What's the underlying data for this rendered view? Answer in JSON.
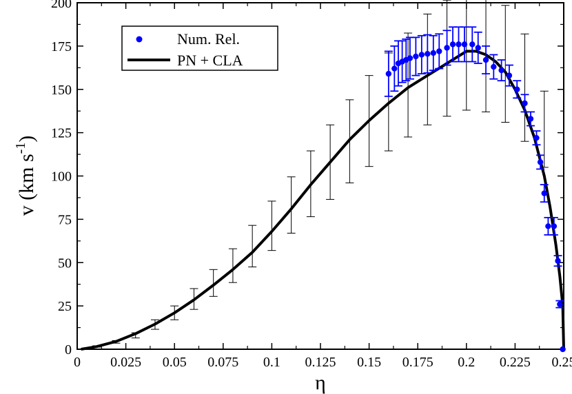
{
  "chart_data": {
    "type": "line",
    "title": "",
    "xlabel": "η",
    "ylabel": {
      "main": "v (km s",
      "exponent": "-1",
      "close": ")"
    },
    "xlim": [
      0,
      0.25
    ],
    "ylim": [
      0,
      200
    ],
    "x_ticks": [
      {
        "value": 0,
        "label": "0"
      },
      {
        "value": 0.025,
        "label": "0.025"
      },
      {
        "value": 0.05,
        "label": "0.05"
      },
      {
        "value": 0.075,
        "label": "0.075"
      },
      {
        "value": 0.1,
        "label": "0.1"
      },
      {
        "value": 0.125,
        "label": "0.125"
      },
      {
        "value": 0.15,
        "label": "0.15"
      },
      {
        "value": 0.175,
        "label": "0.175"
      },
      {
        "value": 0.2,
        "label": "0.2"
      },
      {
        "value": 0.225,
        "label": "0.225"
      },
      {
        "value": 0.25,
        "label": "0.25"
      }
    ],
    "y_ticks": [
      {
        "value": 0,
        "label": "0"
      },
      {
        "value": 25,
        "label": "25"
      },
      {
        "value": 50,
        "label": "50"
      },
      {
        "value": 75,
        "label": "75"
      },
      {
        "value": 100,
        "label": "100"
      },
      {
        "value": 125,
        "label": "125"
      },
      {
        "value": 150,
        "label": "150"
      },
      {
        "value": 175,
        "label": "175"
      },
      {
        "value": 200,
        "label": "200"
      }
    ],
    "grid": false,
    "legend": {
      "placement": "top-left",
      "entries": [
        {
          "label": "Num. Rel.",
          "color": "#0000ff",
          "marker": "circle"
        },
        {
          "label": "PN + CLA",
          "color": "#000000",
          "marker": "line"
        }
      ]
    },
    "series": [
      {
        "name": "PN + CLA",
        "kind": "line",
        "color": "#000000",
        "x": [
          0.002,
          0.01,
          0.02,
          0.03,
          0.04,
          0.05,
          0.06,
          0.07,
          0.08,
          0.09,
          0.1,
          0.11,
          0.12,
          0.13,
          0.14,
          0.15,
          0.16,
          0.17,
          0.18,
          0.19,
          0.2,
          0.205,
          0.21,
          0.215,
          0.22,
          0.225,
          0.23,
          0.235,
          0.24,
          0.243,
          0.246,
          0.248,
          0.2495,
          0.25
        ],
        "y": [
          0,
          1.5,
          4.5,
          9,
          14.5,
          21,
          28.5,
          37,
          46,
          56,
          68,
          81,
          95,
          108,
          121,
          132,
          142,
          151,
          158,
          165,
          172,
          172,
          170,
          166,
          160,
          150,
          138,
          122,
          100,
          82,
          60,
          42,
          25,
          0
        ],
        "error_bars": {
          "color": "#000000",
          "x": [
            0.01,
            0.02,
            0.03,
            0.04,
            0.05,
            0.06,
            0.07,
            0.08,
            0.09,
            0.1,
            0.11,
            0.12,
            0.13,
            0.14,
            0.15,
            0.16,
            0.17,
            0.18,
            0.19,
            0.2,
            0.21,
            0.22,
            0.23,
            0.24
          ],
          "low": [
            1.2,
            3.5,
            6.5,
            11.5,
            17,
            23,
            30.5,
            38.5,
            47.5,
            57,
            67,
            76.5,
            86.5,
            96,
            105.5,
            114.5,
            122.5,
            129.5,
            134.5,
            138,
            137,
            131,
            120,
            105
          ],
          "high": [
            2,
            5,
            9.5,
            17,
            25,
            35,
            46,
            58,
            71.5,
            85.5,
            99.5,
            114.5,
            129.5,
            144,
            158,
            171,
            182.5,
            193.5,
            201.5,
            206,
            205,
            198.5,
            182,
            149
          ]
        }
      },
      {
        "name": "Num. Rel.",
        "kind": "scatter",
        "color": "#0000ff",
        "x": [
          0.16,
          0.163,
          0.165,
          0.167,
          0.169,
          0.171,
          0.174,
          0.177,
          0.18,
          0.183,
          0.186,
          0.19,
          0.193,
          0.196,
          0.199,
          0.203,
          0.206,
          0.21,
          0.214,
          0.218,
          0.222,
          0.226,
          0.23,
          0.233,
          0.236,
          0.238,
          0.24,
          0.242,
          0.245,
          0.247,
          0.248,
          0.2495
        ],
        "y": [
          159,
          162,
          165,
          166,
          167,
          168,
          169,
          170,
          170.5,
          171,
          172,
          174,
          176,
          176,
          176,
          176,
          174,
          167,
          163,
          161,
          158,
          150,
          142,
          133,
          122,
          108,
          90,
          71,
          71,
          51,
          26,
          0
        ],
        "err": [
          13,
          13,
          13,
          12,
          12,
          12,
          11,
          11,
          11,
          10,
          10,
          10,
          10,
          10,
          10,
          10,
          9,
          8,
          7,
          6,
          6,
          5,
          5,
          4,
          4,
          4,
          5,
          5,
          5,
          3,
          2,
          0
        ]
      }
    ]
  }
}
